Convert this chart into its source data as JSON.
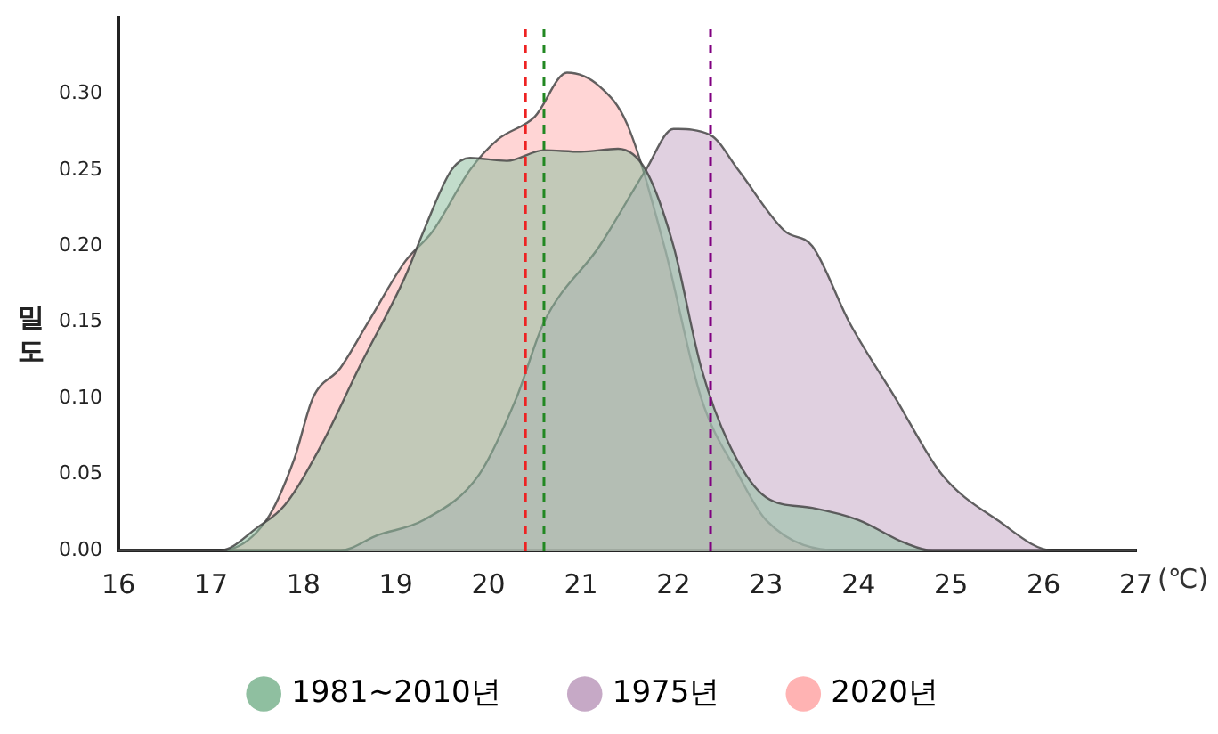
{
  "chart_data": {
    "type": "area",
    "xlabel": "(℃)",
    "ylabel": "밀도",
    "xlim": [
      16,
      27
    ],
    "xticks": [
      16,
      17,
      18,
      19,
      20,
      21,
      22,
      23,
      24,
      25,
      26,
      27
    ],
    "ylim": [
      0,
      0.35
    ],
    "yticks": [
      {
        "value": 0,
        "label": "0.00"
      },
      {
        "value": 0.05,
        "label": "0.05"
      },
      {
        "value": 0.1,
        "label": "0.10"
      },
      {
        "value": 0.15,
        "label": "0.15"
      },
      {
        "value": 0.2,
        "label": "0.20"
      },
      {
        "value": 0.25,
        "label": "0.25"
      },
      {
        "value": 0.3,
        "label": "0.30"
      }
    ],
    "legend": "bottom",
    "marker": "none",
    "series": [
      {
        "name": "1981~2010년",
        "color": "#8fbfa0",
        "x": [
          16,
          17.1,
          17.5,
          17.8,
          18.2,
          18.6,
          19.1,
          19.3,
          19.6,
          19.8,
          20.2,
          20.6,
          21.0,
          21.4,
          21.7,
          22.0,
          22.3,
          22.6,
          23.0,
          23.5,
          24.0,
          24.5,
          24.8,
          27
        ],
        "values": [
          0,
          0,
          0.015,
          0.03,
          0.07,
          0.12,
          0.18,
          0.21,
          0.25,
          0.258,
          0.256,
          0.263,
          0.262,
          0.264,
          0.25,
          0.2,
          0.12,
          0.07,
          0.035,
          0.028,
          0.02,
          0.005,
          0,
          0
        ]
      },
      {
        "name": "1975년",
        "color": "#c6a9c6",
        "x": [
          16,
          18.4,
          18.8,
          19.3,
          19.9,
          20.3,
          20.6,
          21.2,
          21.7,
          22.0,
          22.4,
          22.7,
          23.2,
          23.5,
          23.9,
          24.4,
          24.9,
          25.5,
          26.1,
          27
        ],
        "values": [
          0,
          0,
          0.01,
          0.02,
          0.05,
          0.1,
          0.15,
          0.2,
          0.25,
          0.277,
          0.273,
          0.25,
          0.21,
          0.2,
          0.15,
          0.1,
          0.05,
          0.02,
          0,
          0
        ]
      },
      {
        "name": "2020년",
        "color": "#ffb3b3",
        "x": [
          16,
          17.1,
          17.6,
          17.9,
          18.1,
          18.4,
          18.7,
          19.1,
          19.4,
          19.8,
          20.1,
          20.5,
          20.85,
          21.2,
          21.5,
          21.9,
          22.3,
          22.7,
          23.0,
          23.8,
          27
        ],
        "values": [
          0,
          0,
          0.02,
          0.06,
          0.1,
          0.12,
          0.15,
          0.19,
          0.21,
          0.25,
          0.27,
          0.285,
          0.314,
          0.305,
          0.28,
          0.2,
          0.1,
          0.05,
          0.02,
          0,
          0
        ]
      }
    ],
    "ref_lines": [
      {
        "axis": "x",
        "value": 20.4,
        "color": "#ee2222",
        "line_style": "dashed"
      },
      {
        "axis": "x",
        "value": 20.6,
        "color": "#228822",
        "line_style": "dashed"
      },
      {
        "axis": "x",
        "value": 22.4,
        "color": "#800080",
        "line_style": "dashed"
      }
    ]
  }
}
